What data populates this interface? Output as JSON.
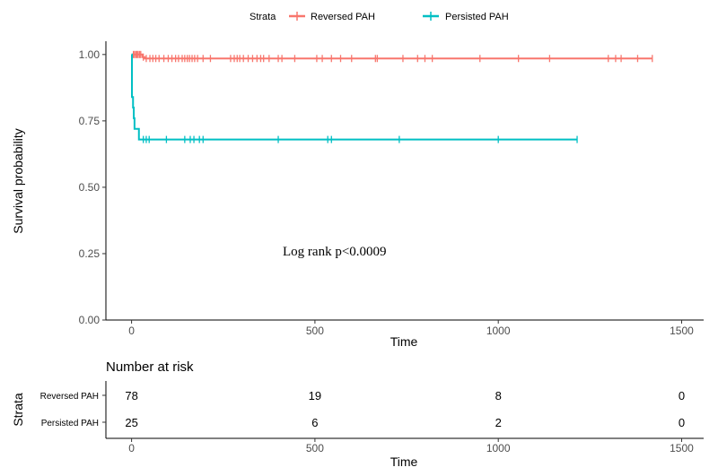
{
  "chart_data": [
    {
      "type": "line",
      "xlabel": "Time",
      "ylabel": "Survival probability",
      "xlim": [
        -70,
        1560
      ],
      "ylim": [
        0,
        1.05
      ],
      "x_ticks": [
        0,
        500,
        1000,
        1500
      ],
      "y_ticks": [
        0.0,
        0.25,
        0.5,
        0.75,
        1.0
      ],
      "y_tick_labels": [
        "0.00",
        "0.25",
        "0.50",
        "0.75",
        "1.00"
      ],
      "grid": false,
      "legend": {
        "title": "Strata",
        "position": "top",
        "entries": [
          "Reversed PAH",
          "Persisted PAH"
        ]
      },
      "annotation": "Log rank p<0.0009",
      "series": [
        {
          "name": "Reversed PAH",
          "color": "#F8766D",
          "steps": [
            [
              0,
              1.0
            ],
            [
              28,
              1.0
            ],
            [
              30,
              0.99
            ],
            [
              35,
              0.99
            ],
            [
              36,
              0.985
            ],
            [
              1420,
              0.985
            ]
          ],
          "censor_x": [
            5,
            8,
            12,
            15,
            18,
            22,
            25,
            32,
            40,
            50,
            58,
            66,
            75,
            88,
            100,
            110,
            120,
            128,
            138,
            145,
            152,
            158,
            165,
            172,
            180,
            195,
            215,
            270,
            280,
            288,
            295,
            305,
            318,
            330,
            342,
            352,
            360,
            375,
            400,
            410,
            445,
            505,
            520,
            545,
            570,
            600,
            665,
            670,
            740,
            780,
            800,
            820,
            950,
            1055,
            1140,
            1300,
            1320,
            1335,
            1380,
            1420
          ]
        },
        {
          "name": "Persisted PAH",
          "color": "#00BFC4",
          "steps": [
            [
              0,
              1.0
            ],
            [
              1,
              0.84
            ],
            [
              4,
              0.8
            ],
            [
              6,
              0.76
            ],
            [
              8,
              0.72
            ],
            [
              18,
              0.72
            ],
            [
              20,
              0.68
            ],
            [
              1215,
              0.68
            ]
          ],
          "censor_x": [
            32,
            40,
            48,
            95,
            145,
            160,
            170,
            185,
            195,
            400,
            535,
            545,
            730,
            1000,
            1215
          ]
        }
      ]
    },
    {
      "type": "table",
      "title": "Number at risk",
      "xlabel": "Time",
      "ylabel": "Strata",
      "xlim": [
        -70,
        1560
      ],
      "x_ticks": [
        0,
        500,
        1000,
        1500
      ],
      "rows": [
        {
          "label": "Reversed PAH",
          "times": [
            0,
            500,
            1000,
            1500
          ],
          "values": [
            "78",
            "19",
            "8",
            "0"
          ]
        },
        {
          "label": "Persisted PAH",
          "times": [
            0,
            500,
            1000,
            1500
          ],
          "values": [
            "25",
            "6",
            "2",
            "0"
          ]
        }
      ]
    }
  ]
}
